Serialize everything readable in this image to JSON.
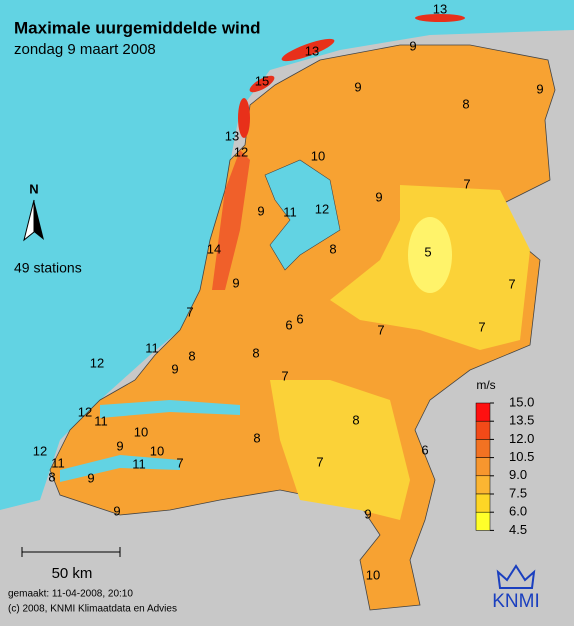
{
  "header": {
    "title": "Maximale uurgemiddelde wind",
    "subtitle": "zondag 9 maart 2008"
  },
  "north": "N",
  "station_count": "49 stations",
  "stations": [
    13,
    9,
    13,
    15,
    9,
    9,
    8,
    13,
    12,
    10,
    7,
    9,
    9,
    11,
    12,
    14,
    8,
    5,
    9,
    7,
    7,
    6,
    6,
    7,
    7,
    12,
    11,
    8,
    9,
    8,
    7,
    12,
    11,
    10,
    9,
    10,
    12,
    8,
    8,
    6,
    11,
    11,
    7,
    7,
    8,
    9,
    9,
    9,
    10
  ],
  "legend": {
    "unit": "m/s",
    "ticks": [
      {
        "value": 15,
        "label": "15.0"
      },
      {
        "value": 13.5,
        "label": "13.5"
      },
      {
        "value": 12,
        "label": "12.0"
      },
      {
        "value": 10.5,
        "label": "10.5"
      },
      {
        "value": 9,
        "label": "9.0"
      },
      {
        "value": 7.5,
        "label": "7.5"
      },
      {
        "value": 6,
        "label": "6.0"
      },
      {
        "value": 4.5,
        "label": "4.5"
      }
    ],
    "colors": [
      "#ff1010",
      "#f24a18",
      "#f27222",
      "#f7962e",
      "#fbb532",
      "#fdd626",
      "#ffff2a"
    ]
  },
  "scale": "50 km",
  "footer": {
    "made": "gemaakt: 11-04-2008, 20:10",
    "copyright": "(c) 2008, KNMI Klimaatdata en Advies"
  },
  "logo": "KNMI"
}
